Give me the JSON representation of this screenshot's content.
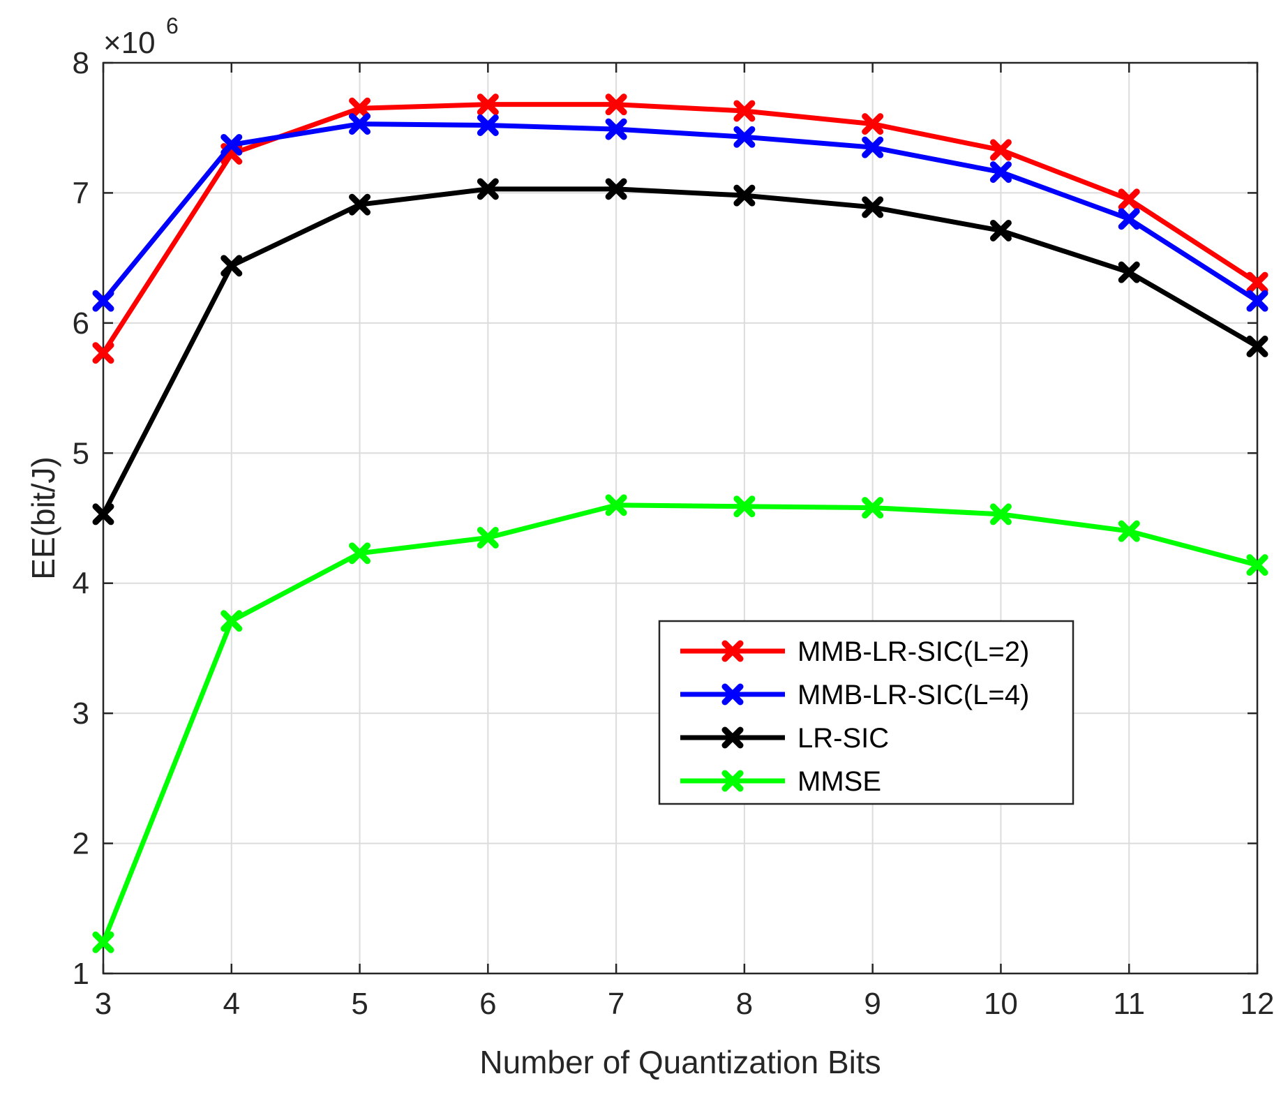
{
  "chart_data": {
    "type": "line",
    "title": "",
    "xlabel": "Number of Quantization Bits",
    "ylabel": "EE(bit/J)",
    "y_multiplier_label": "×10",
    "y_multiplier_exponent": "6",
    "x": [
      3,
      4,
      5,
      6,
      7,
      8,
      9,
      10,
      11,
      12
    ],
    "xlim": [
      3,
      12
    ],
    "ylim": [
      1,
      8
    ],
    "xticks": [
      "3",
      "4",
      "5",
      "6",
      "7",
      "8",
      "9",
      "10",
      "11",
      "12"
    ],
    "yticks": [
      "1",
      "2",
      "3",
      "4",
      "5",
      "6",
      "7",
      "8"
    ],
    "grid": true,
    "legend_position": "center-right",
    "marker": "x",
    "series": [
      {
        "name": "MMB-LR-SIC(L=2)",
        "color": "#ff0000",
        "values": [
          5.77,
          7.3,
          7.65,
          7.68,
          7.68,
          7.63,
          7.53,
          7.33,
          6.95,
          6.31
        ]
      },
      {
        "name": "MMB-LR-SIC(L=4)",
        "color": "#0000ff",
        "values": [
          6.17,
          7.37,
          7.53,
          7.52,
          7.49,
          7.43,
          7.35,
          7.16,
          6.8,
          6.17
        ]
      },
      {
        "name": "LR-SIC",
        "color": "#000000",
        "values": [
          4.53,
          6.44,
          6.91,
          7.03,
          7.03,
          6.98,
          6.89,
          6.71,
          6.39,
          5.82
        ]
      },
      {
        "name": "MMSE",
        "color": "#00ff00",
        "values": [
          1.24,
          3.71,
          4.23,
          4.35,
          4.6,
          4.59,
          4.58,
          4.53,
          4.4,
          4.14
        ]
      }
    ]
  }
}
